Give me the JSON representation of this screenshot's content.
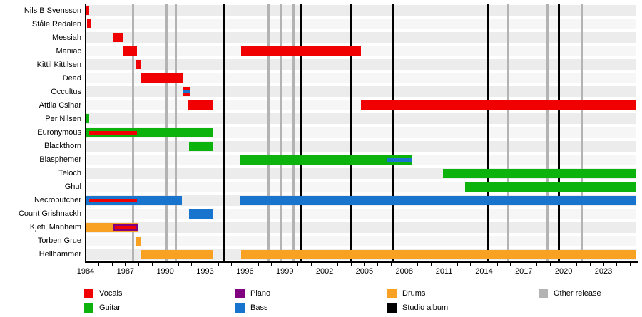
{
  "chart_data": {
    "type": "timeline-gantt",
    "x_axis": {
      "start_year": 1984,
      "end_year": 2025.47,
      "minor_tick_every_years": 1,
      "label_every_years": 3,
      "tick_labels": [
        "1984",
        "1987",
        "1990",
        "1993",
        "1996",
        "1999",
        "2002",
        "2005",
        "2008",
        "2011",
        "2014",
        "2017",
        "2020",
        "2023"
      ]
    },
    "role_colors": {
      "vocals": "#f00000",
      "guitar": "#0cb30c",
      "piano": "#800080",
      "bass": "#1874cd",
      "drums": "#f9a123"
    },
    "event_colors": {
      "studio_album": "#000000",
      "other_release": "#b3b3b3"
    },
    "rows": [
      {
        "name": "Nils B Svensson",
        "bars": [
          {
            "role": "vocals",
            "start": 1984.0,
            "end": 1984.25
          }
        ]
      },
      {
        "name": "Ståle Redalen",
        "bars": [
          {
            "role": "vocals",
            "start": 1984.12,
            "end": 1984.45
          }
        ]
      },
      {
        "name": "Messiah",
        "bars": [
          {
            "role": "vocals",
            "start": 1986.06,
            "end": 1986.86
          }
        ]
      },
      {
        "name": "Maniac",
        "bars": [
          {
            "role": "vocals",
            "start": 1986.86,
            "end": 1987.85
          },
          {
            "role": "vocals",
            "start": 1995.73,
            "end": 2004.74
          }
        ]
      },
      {
        "name": "Kittil Kittilsen",
        "bars": [
          {
            "role": "vocals",
            "start": 1987.81,
            "end": 1988.21
          }
        ]
      },
      {
        "name": "Dead",
        "bars": [
          {
            "role": "vocals",
            "start": 1988.12,
            "end": 1991.32
          }
        ]
      },
      {
        "name": "Occultus",
        "bars": [
          {
            "role": "vocals",
            "start": 1991.3,
            "end": 1991.84,
            "overlays": [
              {
                "role": "bass",
                "start": 1991.3,
                "end": 1991.84,
                "size": "thin"
              }
            ]
          }
        ]
      },
      {
        "name": "Attila Csihar",
        "bars": [
          {
            "role": "vocals",
            "start": 1991.73,
            "end": 1993.58
          },
          {
            "role": "vocals",
            "start": 2004.74,
            "end": 2025.47
          }
        ]
      },
      {
        "name": "Per Nilsen",
        "bars": [
          {
            "role": "guitar",
            "start": 1984.0,
            "end": 1984.27
          }
        ]
      },
      {
        "name": "Euronymous",
        "bars": [
          {
            "role": "guitar",
            "start": 1984.0,
            "end": 1993.58,
            "overlays": [
              {
                "role": "vocals",
                "start": 1984.27,
                "end": 1987.88,
                "size": "thin"
              }
            ]
          }
        ]
      },
      {
        "name": "Blackthorn",
        "bars": [
          {
            "role": "guitar",
            "start": 1991.79,
            "end": 1993.58
          }
        ]
      },
      {
        "name": "Blasphemer",
        "bars": [
          {
            "role": "guitar",
            "start": 1995.67,
            "end": 2008.53,
            "overlays": [
              {
                "role": "bass",
                "start": 2006.71,
                "end": 2008.53,
                "size": "thin"
              }
            ]
          }
        ]
      },
      {
        "name": "Teloch",
        "bars": [
          {
            "role": "guitar",
            "start": 2010.92,
            "end": 2025.47
          }
        ]
      },
      {
        "name": "Ghul",
        "bars": [
          {
            "role": "guitar",
            "start": 2012.6,
            "end": 2025.47
          }
        ]
      },
      {
        "name": "Necrobutcher",
        "bars": [
          {
            "role": "bass",
            "start": 1984.0,
            "end": 1991.25,
            "overlays": [
              {
                "role": "vocals",
                "start": 1984.27,
                "end": 1987.88,
                "size": "thin"
              }
            ]
          },
          {
            "role": "bass",
            "start": 1995.67,
            "end": 2025.47
          }
        ]
      },
      {
        "name": "Count Grishnackh",
        "bars": [
          {
            "role": "bass",
            "start": 1991.79,
            "end": 1993.58
          }
        ]
      },
      {
        "name": "Kjetil Manheim",
        "bars": [
          {
            "role": "drums",
            "start": 1984.0,
            "end": 1987.94,
            "overlays": [
              {
                "role": "piano",
                "start": 1986.06,
                "end": 1987.9,
                "size": "mid"
              },
              {
                "role": "vocals",
                "start": 1986.18,
                "end": 1987.81,
                "size": "thin"
              }
            ]
          }
        ]
      },
      {
        "name": "Torben Grue",
        "bars": [
          {
            "role": "drums",
            "start": 1987.81,
            "end": 1988.21
          }
        ]
      },
      {
        "name": "Hellhammer",
        "bars": [
          {
            "role": "drums",
            "start": 1988.12,
            "end": 1993.58
          },
          {
            "role": "drums",
            "start": 1995.73,
            "end": 2025.47
          }
        ]
      }
    ],
    "events": [
      {
        "type": "other_release",
        "year": 1987.59
      },
      {
        "type": "other_release",
        "year": 1990.09
      },
      {
        "type": "other_release",
        "year": 1990.82
      },
      {
        "type": "studio_album",
        "year": 1994.4
      },
      {
        "type": "other_release",
        "year": 1997.8
      },
      {
        "type": "other_release",
        "year": 1998.7
      },
      {
        "type": "other_release",
        "year": 1999.65
      },
      {
        "type": "studio_album",
        "year": 2000.17
      },
      {
        "type": "studio_album",
        "year": 2003.95
      },
      {
        "type": "studio_album",
        "year": 2007.12
      },
      {
        "type": "studio_album",
        "year": 2014.3
      },
      {
        "type": "other_release",
        "year": 2015.82
      },
      {
        "type": "other_release",
        "year": 2018.8
      },
      {
        "type": "studio_album",
        "year": 2019.65
      },
      {
        "type": "other_release",
        "year": 2021.35
      }
    ],
    "legend": {
      "columns": [
        [
          {
            "label": "Vocals",
            "color": "#f00000"
          },
          {
            "label": "Guitar",
            "color": "#0cb30c"
          }
        ],
        [
          {
            "label": "Piano",
            "color": "#800080"
          },
          {
            "label": "Bass",
            "color": "#1874cd"
          }
        ],
        [
          {
            "label": "Drums",
            "color": "#f9a123"
          },
          {
            "label": "Studio album",
            "color": "#000000"
          }
        ],
        [
          {
            "label": "Other release",
            "color": "#b3b3b3"
          }
        ]
      ]
    }
  }
}
